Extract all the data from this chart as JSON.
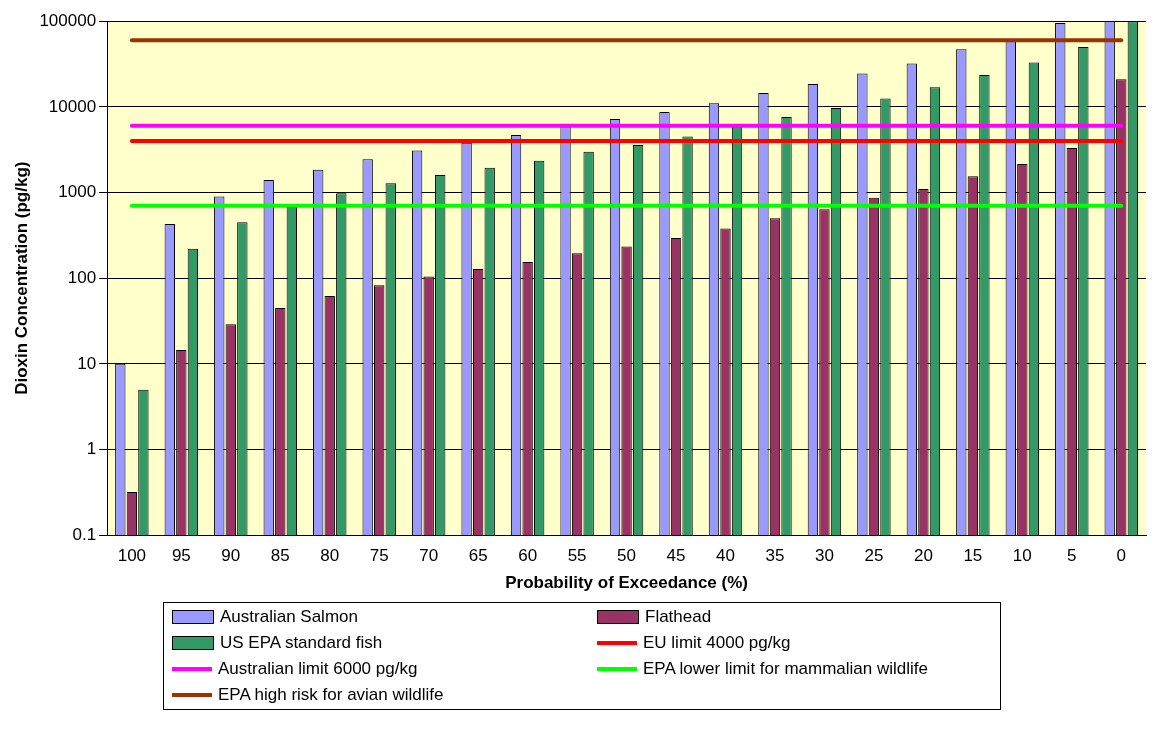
{
  "chart_data": {
    "type": "bar",
    "xlabel": "Probability of Exceedance (%)",
    "ylabel": "Dioxin Concentration (pg/kg)",
    "categories": [
      "100",
      "95",
      "90",
      "85",
      "80",
      "75",
      "70",
      "65",
      "60",
      "55",
      "50",
      "45",
      "40",
      "35",
      "30",
      "25",
      "20",
      "15",
      "10",
      "5",
      "0"
    ],
    "series": [
      {
        "name": "Australian Salmon",
        "color": "#9999ff",
        "values": [
          10,
          430,
          900,
          1400,
          1850,
          2450,
          3100,
          3800,
          4700,
          5900,
          7200,
          8700,
          11000,
          14500,
          18500,
          24500,
          32000,
          47000,
          60000,
          95000,
          100000
        ]
      },
      {
        "name": "Flathead",
        "color": "#993366",
        "values": [
          0.32,
          14.5,
          29,
          45,
          62,
          83,
          105,
          128,
          155,
          195,
          235,
          295,
          380,
          500,
          640,
          870,
          1100,
          1550,
          2150,
          3300,
          21000
        ]
      },
      {
        "name": "US EPA standard fish",
        "color": "#339966",
        "values": [
          5,
          220,
          450,
          680,
          980,
          1280,
          1600,
          1950,
          2350,
          3000,
          3600,
          4500,
          5900,
          7600,
          9700,
          12500,
          17000,
          23500,
          33000,
          50000,
          100000
        ]
      }
    ],
    "ref_lines": [
      {
        "axis": "y",
        "value": 4000,
        "label": "EU limit 4000 pg/kg",
        "color": "#ff0000"
      },
      {
        "axis": "y",
        "value": 6000,
        "label": "Australian limit 6000 pg/kg",
        "color": "#ff00ff"
      },
      {
        "axis": "y",
        "value": 700,
        "label": "EPA lower limit for mammalian wildlife",
        "color": "#00ff00"
      },
      {
        "axis": "y",
        "value": 60000,
        "label": "EPA high risk for avian wildlife",
        "color": "#993300"
      }
    ],
    "log": true,
    "ylim": [
      0.1,
      100000
    ],
    "yticks": [
      0.1,
      1,
      10,
      100,
      1000,
      10000,
      100000
    ],
    "grid": "y",
    "legend": "bottom"
  }
}
